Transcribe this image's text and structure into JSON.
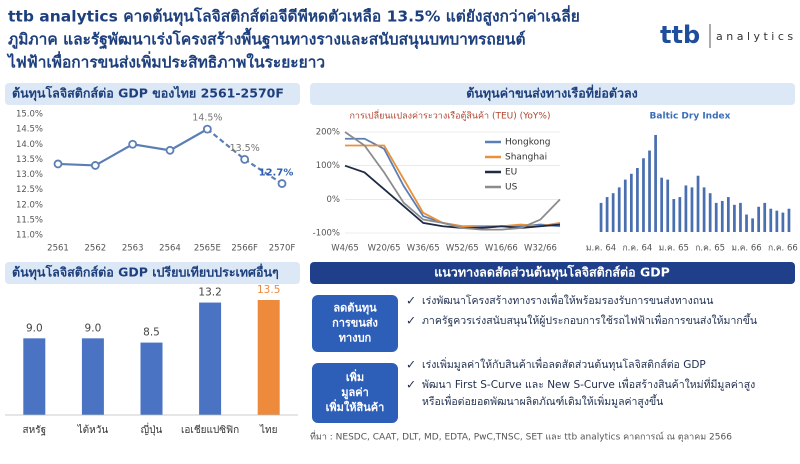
{
  "header": {
    "title_lines": [
      "ttb analytics คาดต้นทุนโลจิสติกส์ต่อจีดีพีหดตัวเหลือ 13.5% แต่ยังสูงกว่าค่าเฉลี่ย",
      "ภูมิภาค และรัฐพัฒนาเร่งโครงสร้างพื้นฐานทางรางและสนับสนุนบทบาทรถยนต์",
      "ไฟฟ้าเพื่อการขนส่งเพิ่มประสิทธิภาพในระยะยาว"
    ],
    "logo_brand": "ttb",
    "logo_text": "a n a l y t i c s"
  },
  "shipping_heading": "ต้นทุนค่าขนส่งทางเรือที่ย่อตัวลง",
  "chart_data": [
    {
      "type": "line",
      "title": "ต้นทุนโลจิสติกส์ต่อ GDP ของไทย 2561-2570F",
      "categories": [
        "2561",
        "2562",
        "2563",
        "2564",
        "2565E",
        "2566F",
        "2570F"
      ],
      "values": [
        13.35,
        13.3,
        14.0,
        13.8,
        14.5,
        13.5,
        12.7
      ],
      "value_labels": [
        null,
        null,
        null,
        null,
        "14.5%",
        "13.5%",
        "12.7%"
      ],
      "color": "#5b7fb5",
      "dashed_from_index": 4,
      "ylim": [
        11,
        15
      ],
      "yticks": [
        {
          "value": 11,
          "label": "11.0%"
        },
        {
          "value": 11.5,
          "label": "11.5%"
        },
        {
          "value": 12,
          "label": "12.0%"
        },
        {
          "value": 12.5,
          "label": "12.5%"
        },
        {
          "value": 13,
          "label": "13.0%"
        },
        {
          "value": 13.5,
          "label": "13.5%"
        },
        {
          "value": 14,
          "label": "14.0%"
        },
        {
          "value": 14.5,
          "label": "14.5%"
        },
        {
          "value": 15,
          "label": "15.0%"
        }
      ],
      "grid": false
    },
    {
      "type": "line",
      "title": "การเปลี่ยนแปลงค่าระวางเรือตู้สินค้า (TEU) (YoY%)",
      "categories": [
        "W4/65",
        null,
        "W20/65",
        null,
        "W36/65",
        null,
        "W52/65",
        null,
        "W16/66",
        null,
        "W32/66",
        null
      ],
      "series": [
        {
          "name": "Hongkong",
          "color": "#5b7fb5",
          "values": [
            180,
            180,
            150,
            40,
            -50,
            -70,
            -80,
            -80,
            -80,
            -80,
            -75,
            -80
          ]
        },
        {
          "name": "Shanghai",
          "color": "#e8913a",
          "values": [
            160,
            160,
            160,
            60,
            -40,
            -70,
            -80,
            -85,
            -80,
            -75,
            -80,
            -70
          ]
        },
        {
          "name": "EU",
          "color": "#1f2a44",
          "values": [
            100,
            80,
            30,
            -20,
            -70,
            -80,
            -85,
            -85,
            -80,
            -85,
            -80,
            -75
          ]
        },
        {
          "name": "US",
          "color": "#8c8c8c",
          "values": [
            200,
            160,
            80,
            -10,
            -60,
            -70,
            -85,
            -90,
            -90,
            -85,
            -60,
            0
          ]
        }
      ],
      "ylim": [
        -100,
        200
      ],
      "yticks": [
        {
          "value": -100,
          "label": "-100%"
        },
        {
          "value": 0,
          "label": "0%"
        },
        {
          "value": 100,
          "label": "100%"
        },
        {
          "value": 200,
          "label": "200%"
        }
      ],
      "legend": "upper right"
    },
    {
      "type": "bar",
      "title": "Baltic Dry Index",
      "categories": [
        "ม.ค. 64",
        null,
        null,
        null,
        null,
        null,
        "ก.ค. 64",
        null,
        null,
        null,
        null,
        null,
        "ม.ค. 65",
        null,
        null,
        null,
        null,
        null,
        "ก.ค. 65",
        null,
        null,
        null,
        null,
        null,
        "ม.ค. 66",
        null,
        null,
        null,
        null,
        null,
        "ก.ค. 66",
        null
      ],
      "values": [
        1500,
        1800,
        2000,
        2300,
        2700,
        3000,
        3300,
        3800,
        4200,
        5000,
        2800,
        2700,
        1700,
        1800,
        2400,
        2300,
        2900,
        2300,
        2000,
        1500,
        1600,
        1800,
        1400,
        1500,
        900,
        700,
        1300,
        1500,
        1200,
        1100,
        1000,
        1200
      ],
      "color": "#4a6fb0"
    },
    {
      "type": "bar",
      "title": "ต้นทุนโลจิสติกส์ต่อ GDP เปรียบเทียบประเทศอื่นๆ",
      "categories": [
        "สหรัฐ",
        "ไต้หวัน",
        "ญี่ปุ่น",
        "เอเชียแปซิฟิก",
        "ไทย"
      ],
      "values": [
        9.0,
        9.0,
        8.5,
        13.2,
        13.5
      ],
      "value_labels": [
        "9.0",
        "9.0",
        "8.5",
        "13.2",
        "13.5"
      ],
      "colors": [
        "#4a73c4",
        "#4a73c4",
        "#4a73c4",
        "#4a73c4",
        "#ee8a3c"
      ]
    }
  ],
  "strategy": {
    "heading": "แนวทางลดสัดส่วนต้นทุนโลจิสติกส์ต่อ GDP",
    "groups": [
      {
        "label_lines": [
          "ลดต้นทุน",
          "การขนส่ง",
          "ทางบก"
        ],
        "items": [
          {
            "lines": [
              "เร่งพัฒนาโครงสร้างทางรางเพื่อให้พร้อมรองรับการขนส่งทางถนน"
            ]
          },
          {
            "lines": [
              "ภาครัฐควรเร่งสนับสนุนให้ผู้ประกอบการใช้รถไฟฟ้าเพื่อการขนส่งให้มากขึ้น"
            ]
          }
        ]
      },
      {
        "label_lines": [
          "เพิ่ม",
          "มูลค่า",
          "เพิ่มให้สินค้า"
        ],
        "items": [
          {
            "lines": [
              "เร่งเพิ่มมูลค่าให้กับสินค้าเพื่อลดสัดส่วนต้นทุนโลจิสติกส์ต่อ GDP"
            ]
          },
          {
            "lines": [
              "พัฒนา First S-Curve และ New S-Curve เพื่อสร้างสินค้าใหม่ที่มีมูลค่าสูง",
              "หรือเพื่อต่อยอดพัฒนาผลิตภัณฑ์เดิมให้เพิ่มมูลค่าสูงขึ้น"
            ]
          }
        ]
      }
    ]
  },
  "source": "ที่มา : NESDC, CAAT, DLT, MD, EDTA, PwC,TNSC, SET และ ttb  analytics คาดการณ์ ณ ตุลาคม 2566"
}
